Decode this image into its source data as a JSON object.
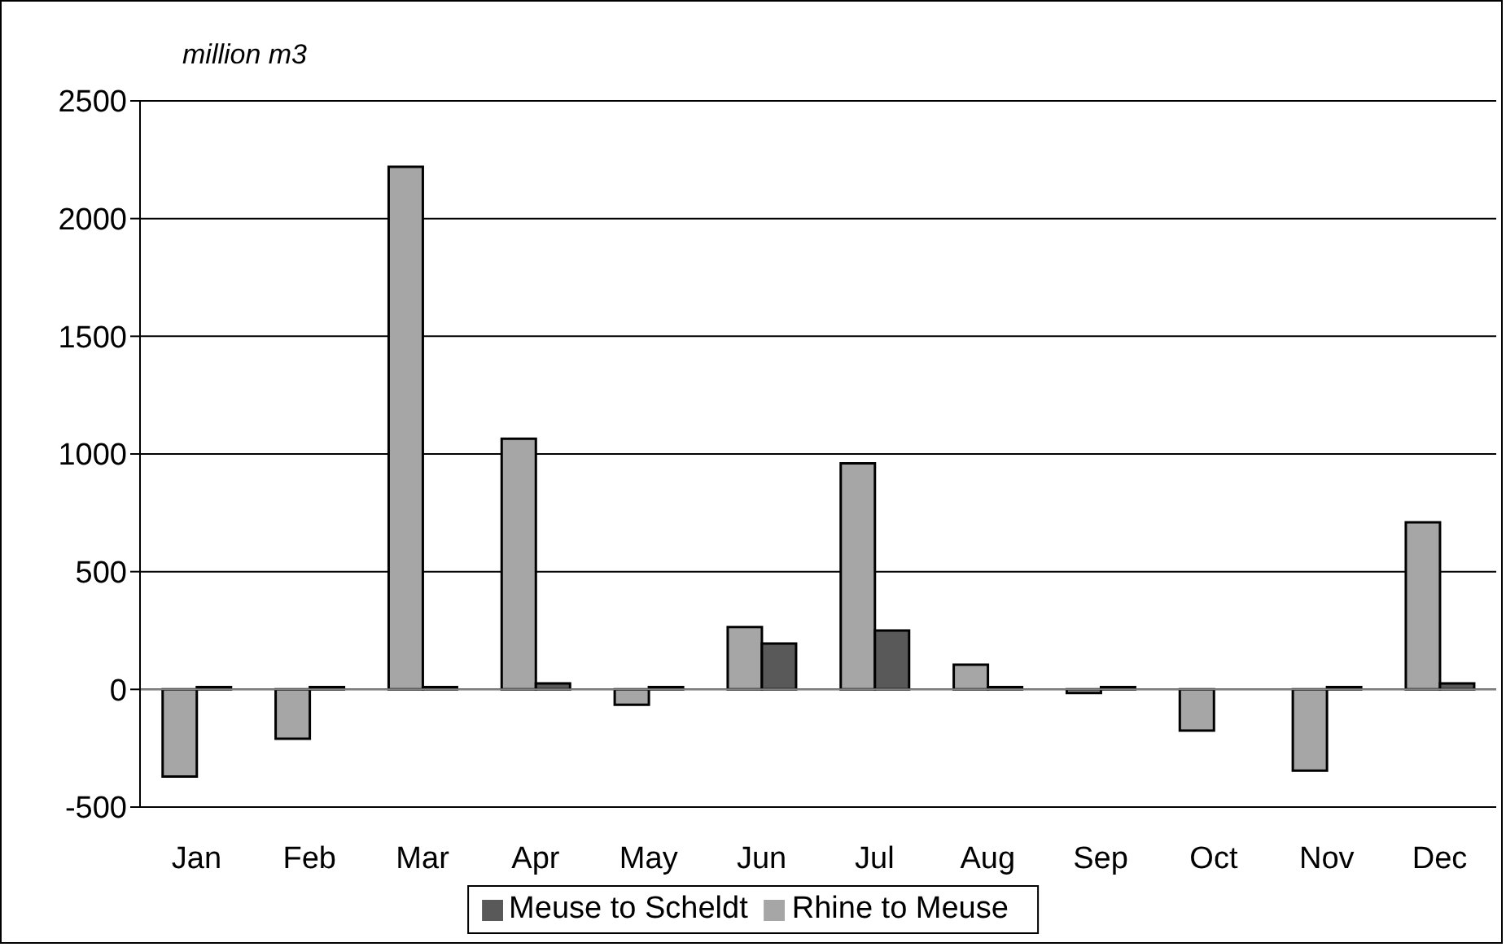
{
  "chart_data": {
    "type": "bar",
    "ylabel": "million m3",
    "categories": [
      "Jan",
      "Feb",
      "Mar",
      "Apr",
      "May",
      "Jun",
      "Jul",
      "Aug",
      "Sep",
      "Oct",
      "Nov",
      "Dec"
    ],
    "series": [
      {
        "name": "Rhine to Meuse",
        "color": "#a6a6a6",
        "values": [
          -370,
          -210,
          2220,
          1065,
          -65,
          265,
          960,
          105,
          -15,
          -175,
          -345,
          710
        ]
      },
      {
        "name": "Meuse to Scheldt",
        "color": "#595959",
        "values": [
          10,
          10,
          10,
          25,
          10,
          195,
          250,
          10,
          10,
          null,
          10,
          25
        ]
      }
    ],
    "ylim": [
      -500,
      2500
    ],
    "yticks": [
      -500,
      0,
      500,
      1000,
      1500,
      2000,
      2500
    ],
    "grid": "y",
    "legend": "bottom"
  }
}
